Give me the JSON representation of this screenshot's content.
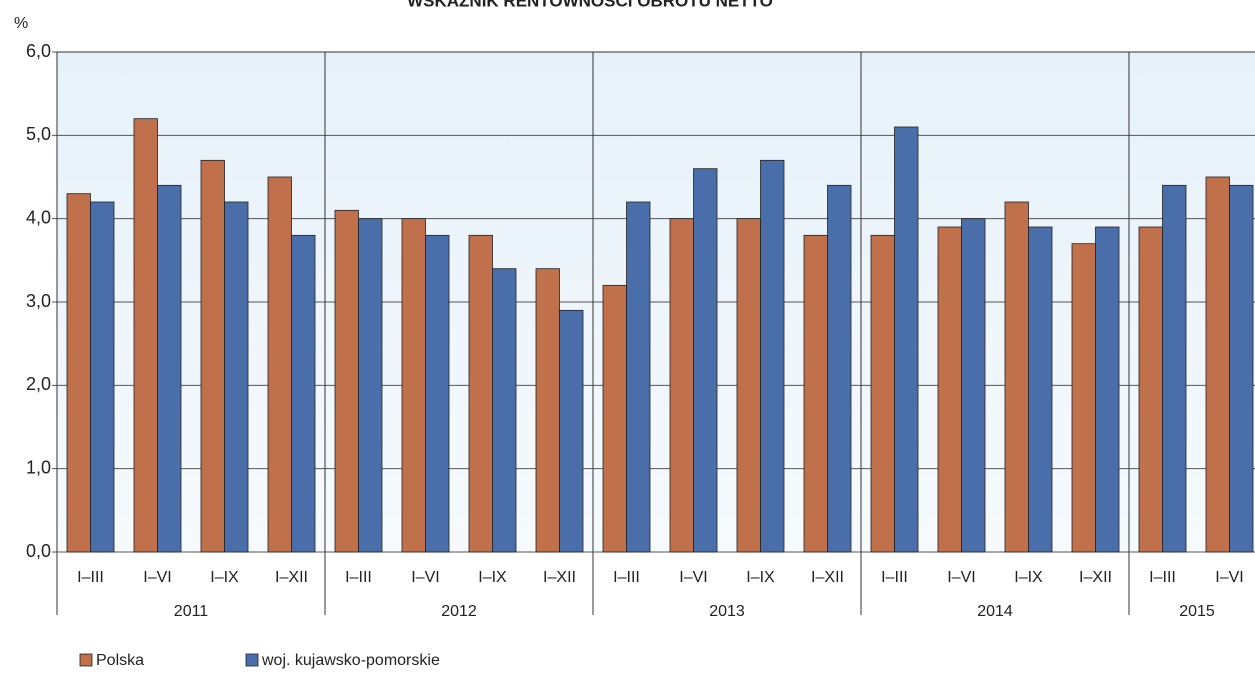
{
  "chart_data": {
    "type": "bar",
    "title": "WSKAŹNIK RENTOWNOŚCI OBROTU NETTO",
    "y_label": "%",
    "categories": [
      "I–III",
      "I–VI",
      "I–IX",
      "I–XII",
      "I–III",
      "I–VI",
      "I–IX",
      "I–XII",
      "I–III",
      "I–VI",
      "I–IX",
      "I–XII",
      "I–III",
      "I–VI",
      "I–IX",
      "I–XII",
      "I–III",
      "I–VI"
    ],
    "years": [
      "2011",
      "2012",
      "2013",
      "2014",
      "2015"
    ],
    "series": [
      {
        "name": "Polska",
        "color": "#c0704a",
        "values": [
          4.3,
          5.2,
          4.7,
          4.5,
          4.1,
          4.0,
          3.8,
          3.4,
          3.2,
          4.0,
          4.0,
          3.8,
          3.8,
          3.9,
          4.2,
          3.7,
          3.9,
          4.5
        ]
      },
      {
        "name": "woj. kujawsko-pomorskie",
        "color": "#4a6eaa",
        "values": [
          4.2,
          4.4,
          4.2,
          3.8,
          4.0,
          3.8,
          3.4,
          2.9,
          4.2,
          4.6,
          4.7,
          4.4,
          5.1,
          4.0,
          3.9,
          3.9,
          4.4,
          4.4
        ]
      }
    ],
    "ylim": [
      0,
      6
    ],
    "yticks": [
      {
        "value": 0,
        "label": "0,0"
      },
      {
        "value": 1,
        "label": "1,0"
      },
      {
        "value": 2,
        "label": "2,0"
      },
      {
        "value": 3,
        "label": "3,0"
      },
      {
        "value": 4,
        "label": "4,0"
      },
      {
        "value": 5,
        "label": "5,0"
      },
      {
        "value": 6,
        "label": "6,0"
      }
    ],
    "grid": true,
    "legend": "bottom-left"
  }
}
